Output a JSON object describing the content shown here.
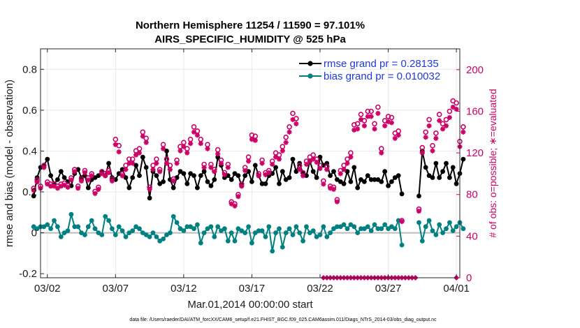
{
  "chart_data": {
    "type": "line",
    "title": "Northern Hemisphere 11254 / 11590 = 97.101%",
    "subtitle": "AIRS_SPECIFIC_HUMIDITY @ 525 hPa",
    "xlabel": "Mar.01,2014 00:00:00 start",
    "ylabel": "rmse and bias (model - observation)",
    "ylabel_right": "# of obs: o=possible; ∗=evaluated",
    "footnote": "data file: /Users/raeder/DAI/ATM_forcXX/CAM6_setup/f.e21.FHIST_BGC.f09_025.CAM6assim.011/Diags_NTrS_2014-03/obs_diag_output.nc",
    "x_unit": "days since Mar.01,2014 00:00",
    "xlim": [
      0.5,
      31.25
    ],
    "xticks": [
      1,
      6,
      11,
      16,
      21,
      26,
      31
    ],
    "xtick_labels": [
      "03/02",
      "03/07",
      "03/12",
      "03/17",
      "03/22",
      "03/27",
      "04/01"
    ],
    "ylim": [
      -0.22,
      0.9
    ],
    "yticks": [
      -0.2,
      0,
      0.2,
      0.4,
      0.6,
      0.8
    ],
    "ytick_labels": [
      "-0.2",
      "0",
      "0.2",
      "0.4",
      "0.6",
      "0.8"
    ],
    "ylim_right": [
      0,
      220
    ],
    "yticks_right": [
      0,
      40,
      80,
      120,
      160,
      200
    ],
    "ytick_labels_right": [
      "0",
      "40",
      "80",
      "120",
      "160",
      "200"
    ],
    "colors": {
      "rmse": "#000000",
      "bias": "#008080",
      "obs": "#cc0066",
      "zero_line": "#bbbbbb",
      "grid": "#e9e9e9"
    },
    "legend": {
      "placement": "top-right",
      "entries": [
        "rmse grand pr = 0.28135",
        "bias grand pr = 0.010032"
      ]
    },
    "series": [
      {
        "name": "rmse",
        "color": "#000000",
        "segments": [
          {
            "x0": 0.0,
            "dx": 0.25,
            "values": [
              0.18,
              0.27,
              0.32,
              0.33,
              0.36,
              0.28,
              0.24,
              0.26,
              0.3,
              0.27,
              0.25,
              0.23,
              0.29,
              0.31,
              0.27,
              0.28,
              0.22,
              0.26,
              0.27,
              0.28,
              0.3,
              0.28,
              0.34,
              0.27,
              0.26,
              0.29,
              0.31,
              0.27,
              0.22,
              0.27,
              0.33,
              0.28,
              0.37,
              0.32,
              0.17,
              0.3,
              0.28,
              0.24,
              0.25,
              0.4,
              0.26,
              0.22,
              0.27,
              0.3,
              0.29,
              0.24,
              0.29,
              0.28,
              0.22,
              0.28,
              0.3,
              0.25,
              0.23,
              0.26,
              0.37,
              0.33,
              0.27,
              0.28,
              0.26,
              0.29,
              0.28,
              0.23,
              0.28,
              0.3,
              0.25,
              0.33,
              0.28,
              0.24,
              0.24,
              0.28,
              0.29,
              0.32,
              0.24,
              0.3,
              0.26,
              0.27,
              0.36,
              0.3,
              0.34,
              0.29,
              0.28,
              0.35,
              0.3,
              0.27,
              0.37,
              0.33,
              0.34,
              0.28,
              0.3,
              0.26,
              0.25,
              0.24,
              0.3,
              0.25,
              0.32,
              0.22,
              0.26,
              0.25,
              0.28,
              0.26,
              0.26,
              0.26,
              0.25,
              0.3,
              0.23,
              0.25,
              0.27,
              0.28,
              0.19
            ]
          },
          {
            "x0": 28.25,
            "dx": 0.25,
            "values": [
              0.18,
              0.4,
              0.32,
              0.28,
              0.27,
              0.34,
              0.27,
              0.3,
              0.34,
              0.27,
              0.32,
              0.24,
              0.29,
              0.36
            ]
          }
        ]
      },
      {
        "name": "bias",
        "color": "#008080",
        "segments": [
          {
            "x0": 0.0,
            "dx": 0.25,
            "values": [
              0.03,
              0.02,
              0.03,
              0.03,
              0.04,
              0.02,
              0.06,
              0.03,
              -0.02,
              0.0,
              0.01,
              0.09,
              0.03,
              0.03,
              0.0,
              -0.01,
              0.03,
              0.06,
              0.02,
              0.0,
              -0.01,
              0.08,
              0.06,
              0.02,
              -0.01,
              0.03,
              0.01,
              -0.02,
              0.0,
              0.01,
              0.03,
              0.02,
              0.0,
              -0.01,
              -0.02,
              0.0,
              -0.02,
              -0.04,
              -0.03,
              -0.01,
              0.0,
              0.08,
              0.05,
              0.02,
              0.01,
              0.03,
              0.03,
              0.02,
              0.04,
              -0.05,
              0.0,
              0.02,
              0.03,
              -0.02,
              0.03,
              0.01,
              0.02,
              -0.04,
              0.0,
              -0.04,
              0.02,
              0.01,
              0.0,
              0.03,
              -0.05,
              0.0,
              0.01,
              0.01,
              -0.02,
              0.03,
              -0.09,
              0.0,
              0.02,
              -0.07,
              0.0,
              0.02,
              -0.01,
              0.03,
              0.0,
              -0.04,
              0.03,
              0.0,
              0.01,
              -0.02,
              -0.01,
              0.03,
              -0.02,
              0.0,
              0.02,
              0.03,
              0.03,
              0.04,
              0.02,
              0.04,
              0.03,
              0.0,
              0.02,
              0.02,
              0.03,
              0.01,
              0.04,
              0.02,
              0.02,
              0.04,
              0.02,
              0.03,
              0.02,
              0.06,
              -0.06
            ]
          },
          {
            "x0": 28.25,
            "dx": 0.25,
            "values": [
              0.05,
              -0.04,
              0.03,
              0.06,
              0.01,
              -0.01,
              0.04,
              0.0,
              0.02,
              0.05,
              0.01,
              0.03,
              0.05,
              0.02
            ]
          }
        ]
      },
      {
        "name": "obs_possible",
        "color": "#cc0066",
        "marker": "circle",
        "segments": [
          {
            "x0": 0.0,
            "dx": 0.25,
            "values": [
              86,
              94,
              88,
              108,
              92,
              90,
              90,
              88,
              90,
              91,
              89,
              96,
              104,
              88,
              95,
              103,
              96,
              100,
              83,
              87,
              102,
              100,
              103,
              95,
              133,
              127,
              100,
              108,
              114,
              114,
              122,
              124,
              140,
              134,
              87,
              108,
              114,
              104,
              128,
              114,
              108,
              95,
              113,
              126,
              130,
              124,
              133,
              145,
              141,
              133,
              109,
              128,
              109,
              104,
              123,
              113,
              101,
              109,
              73,
              71,
              80,
              90,
              106,
              116,
              137,
              136,
              100,
              113,
              101,
              103,
              112,
              120,
              118,
              126,
              135,
              145,
              158,
              153,
              108,
              101,
              112,
              116,
              118,
              114,
              108,
              93,
              107,
              88,
              87,
              75,
              103,
              108,
              114,
              120,
              147,
              148,
              157,
              151,
              160,
              160,
              148,
              164,
              124,
              151,
              155,
              154,
              139,
              141,
              55
            ]
          },
          {
            "x0": 28.25,
            "dx": 0.25,
            "values": [
              66,
              125,
              140,
              152,
              127,
              139,
              157,
              148,
              152,
              160,
              170,
              168,
              131,
              145
            ]
          }
        ]
      },
      {
        "name": "obs_evaluated",
        "color": "#cc0066",
        "marker": "asterisk",
        "segments": [
          {
            "x0": 0.0,
            "dx": 0.25,
            "values": [
              84,
              92,
              86,
              106,
              90,
              88,
              88,
              86,
              88,
              89,
              87,
              94,
              102,
              86,
              93,
              101,
              94,
              98,
              81,
              85,
              100,
              98,
              101,
              93,
              128,
              121,
              98,
              104,
              110,
              110,
              118,
              120,
              136,
              130,
              85,
              104,
              110,
              102,
              124,
              110,
              104,
              93,
              110,
              122,
              126,
              120,
              129,
              140,
              137,
              129,
              106,
              124,
              106,
              102,
              119,
              110,
              99,
              106,
              71,
              69,
              78,
              88,
              103,
              112,
              133,
              132,
              98,
              110,
              99,
              101,
              109,
              116,
              114,
              122,
              130,
              140,
              152,
              148,
              104,
              98,
              109,
              112,
              114,
              111,
              105,
              90,
              104,
              86,
              85,
              73,
              100,
              104,
              110,
              116,
              142,
              143,
              152,
              146,
              155,
              155,
              143,
              158,
              120,
              146,
              150,
              149,
              134,
              137,
              54
            ]
          },
          {
            "x0": 28.25,
            "dx": 0.25,
            "values": [
              64,
              120,
              135,
              146,
              122,
              134,
              151,
              143,
              146,
              154,
              164,
              162,
              126,
              140
            ]
          }
        ]
      },
      {
        "name": "obs_zero",
        "color": "#cc0066",
        "marker": "diamond",
        "segments": [
          {
            "x0": 21.25,
            "dx": 0.25,
            "values": [
              0,
              0,
              0,
              0,
              0,
              0,
              0,
              0,
              0,
              0,
              0,
              0,
              0,
              0,
              0,
              0,
              0,
              0,
              0,
              0,
              0,
              0,
              0,
              0,
              0,
              0,
              0,
              0
            ]
          },
          {
            "x0": 31.0,
            "dx": 0.25,
            "values": [
              0
            ]
          }
        ]
      }
    ]
  }
}
